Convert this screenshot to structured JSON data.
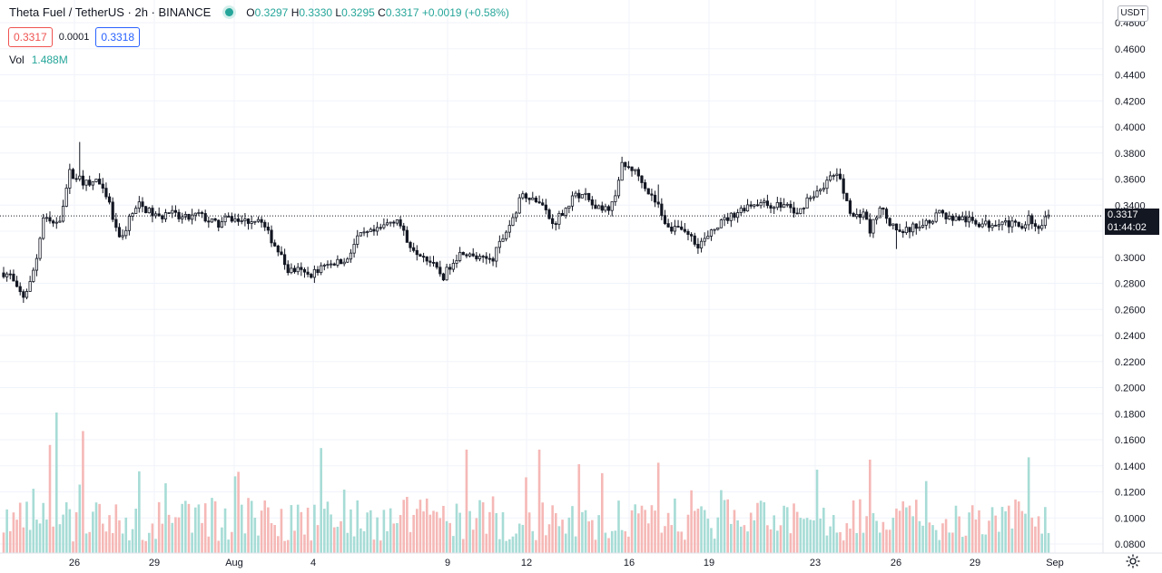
{
  "legend": {
    "symbol": "Theta Fuel / TetherUS · 2h · BINANCE",
    "o_label": "O",
    "o": "0.3297",
    "h_label": "H",
    "h": "0.3330",
    "l_label": "L",
    "l": "0.3295",
    "c_label": "C",
    "c": "0.3317",
    "change": "+0.0019 (+0.58%)"
  },
  "price_boxes": {
    "sell": "0.3317",
    "spread": "0.0001",
    "buy": "0.3318"
  },
  "volume": {
    "label": "Vol",
    "value": "1.488M"
  },
  "currency": "USDT",
  "last_price": {
    "value": "0.3317",
    "countdown": "01:44:02"
  },
  "colors": {
    "up": "#26a69a",
    "down": "#ef5350",
    "candle": "#131722",
    "vol_up": "#a7dcd6",
    "vol_down": "#f5b8b6"
  },
  "chart_data": {
    "type": "candlestick",
    "price_axis_ticks": [
      "0.4800",
      "0.4600",
      "0.4400",
      "0.4200",
      "0.4000",
      "0.3800",
      "0.3600",
      "0.3400",
      "0.3200",
      "0.3000",
      "0.2800",
      "0.2600",
      "0.2400",
      "0.2200",
      "0.2000",
      "0.1800",
      "0.1600",
      "0.1400",
      "0.1200",
      "0.1000",
      "0.0800"
    ],
    "time_axis_ticks": [
      "26",
      "29",
      "Aug",
      "4",
      "9",
      "12",
      "16",
      "19",
      "23",
      "26",
      "29",
      "Sep"
    ],
    "ylim": [
      0.08,
      0.49
    ],
    "price_path": [
      [
        0,
        0.288
      ],
      [
        2,
        0.286
      ],
      [
        4,
        0.275
      ],
      [
        6,
        0.27
      ],
      [
        8,
        0.28
      ],
      [
        10,
        0.3
      ],
      [
        12,
        0.33
      ],
      [
        15,
        0.325
      ],
      [
        17,
        0.33
      ],
      [
        20,
        0.365
      ],
      [
        23,
        0.36
      ],
      [
        26,
        0.355
      ],
      [
        28,
        0.36
      ],
      [
        30,
        0.35
      ],
      [
        32,
        0.34
      ],
      [
        34,
        0.32
      ],
      [
        36,
        0.315
      ],
      [
        38,
        0.33
      ],
      [
        41,
        0.34
      ],
      [
        44,
        0.335
      ],
      [
        47,
        0.33
      ],
      [
        50,
        0.335
      ],
      [
        53,
        0.33
      ],
      [
        56,
        0.33
      ],
      [
        59,
        0.333
      ],
      [
        62,
        0.328
      ],
      [
        65,
        0.325
      ],
      [
        68,
        0.33
      ],
      [
        71,
        0.328
      ],
      [
        74,
        0.328
      ],
      [
        77,
        0.33
      ],
      [
        80,
        0.318
      ],
      [
        83,
        0.305
      ],
      [
        86,
        0.29
      ],
      [
        89,
        0.29
      ],
      [
        92,
        0.286
      ],
      [
        95,
        0.29
      ],
      [
        98,
        0.296
      ],
      [
        101,
        0.296
      ],
      [
        104,
        0.3
      ],
      [
        107,
        0.315
      ],
      [
        110,
        0.318
      ],
      [
        113,
        0.32
      ],
      [
        116,
        0.326
      ],
      [
        119,
        0.33
      ],
      [
        122,
        0.312
      ],
      [
        125,
        0.305
      ],
      [
        128,
        0.3
      ],
      [
        131,
        0.29
      ],
      [
        133,
        0.285
      ],
      [
        136,
        0.298
      ],
      [
        139,
        0.305
      ],
      [
        142,
        0.3
      ],
      [
        145,
        0.298
      ],
      [
        148,
        0.3
      ],
      [
        151,
        0.315
      ],
      [
        154,
        0.33
      ],
      [
        157,
        0.35
      ],
      [
        160,
        0.345
      ],
      [
        163,
        0.34
      ],
      [
        166,
        0.325
      ],
      [
        169,
        0.335
      ],
      [
        172,
        0.345
      ],
      [
        175,
        0.35
      ],
      [
        178,
        0.34
      ],
      [
        181,
        0.335
      ],
      [
        184,
        0.34
      ],
      [
        187,
        0.37
      ],
      [
        190,
        0.368
      ],
      [
        193,
        0.36
      ],
      [
        195,
        0.35
      ],
      [
        198,
        0.34
      ],
      [
        201,
        0.322
      ],
      [
        204,
        0.325
      ],
      [
        207,
        0.318
      ],
      [
        210,
        0.31
      ],
      [
        213,
        0.315
      ],
      [
        216,
        0.325
      ],
      [
        219,
        0.33
      ],
      [
        222,
        0.335
      ],
      [
        225,
        0.34
      ],
      [
        228,
        0.342
      ],
      [
        231,
        0.34
      ],
      [
        234,
        0.34
      ],
      [
        237,
        0.34
      ],
      [
        240,
        0.332
      ],
      [
        243,
        0.345
      ],
      [
        246,
        0.35
      ],
      [
        249,
        0.358
      ],
      [
        252,
        0.365
      ],
      [
        254,
        0.35
      ],
      [
        257,
        0.33
      ],
      [
        260,
        0.335
      ],
      [
        262,
        0.32
      ],
      [
        265,
        0.34
      ],
      [
        268,
        0.325
      ],
      [
        271,
        0.318
      ],
      [
        274,
        0.322
      ],
      [
        277,
        0.325
      ],
      [
        280,
        0.328
      ],
      [
        283,
        0.335
      ],
      [
        286,
        0.33
      ],
      [
        289,
        0.33
      ],
      [
        292,
        0.328
      ],
      [
        295,
        0.326
      ],
      [
        298,
        0.325
      ],
      [
        301,
        0.328
      ],
      [
        304,
        0.326
      ],
      [
        307,
        0.323
      ],
      [
        310,
        0.33
      ],
      [
        312,
        0.323
      ],
      [
        314,
        0.325
      ],
      [
        316,
        0.3317
      ]
    ],
    "volume_range": [
      0,
      1.82
    ]
  }
}
